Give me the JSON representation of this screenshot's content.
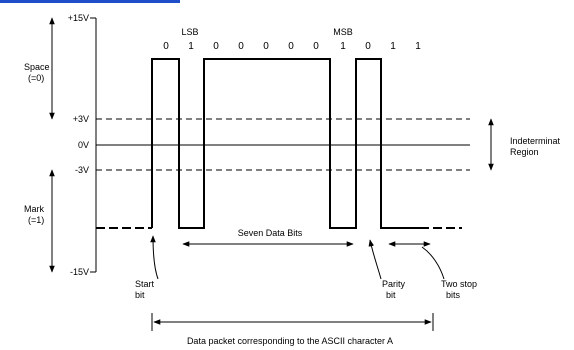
{
  "colors": {
    "line": "#000000",
    "background": "#ffffff",
    "top_strip": "#1f4fc8"
  },
  "voltages": {
    "plus15": "+15V",
    "plus3": "+3V",
    "zero": "0V",
    "minus3": "-3V",
    "minus15": "-15V"
  },
  "state_labels": {
    "space": "Space",
    "space_value": "(=0)",
    "mark": "Mark",
    "mark_value": "(=1)"
  },
  "bit_labels": {
    "lsb": "LSB",
    "msb": "MSB",
    "bits": [
      "0",
      "1",
      "0",
      "0",
      "0",
      "0",
      "0",
      "1",
      "0",
      "1",
      "1"
    ]
  },
  "region": {
    "line1": "Indeterminat",
    "line2": "Region"
  },
  "annotations": {
    "seven_data_bits": "Seven Data Bits",
    "start_bit_1": "Start",
    "start_bit_2": "bit",
    "parity_bit_1": "Parity",
    "parity_bit_2": "bit",
    "stop_bits_1": "Two stop",
    "stop_bits_2": "bits",
    "packet": "Data packet corresponding to the ASCII character A"
  }
}
